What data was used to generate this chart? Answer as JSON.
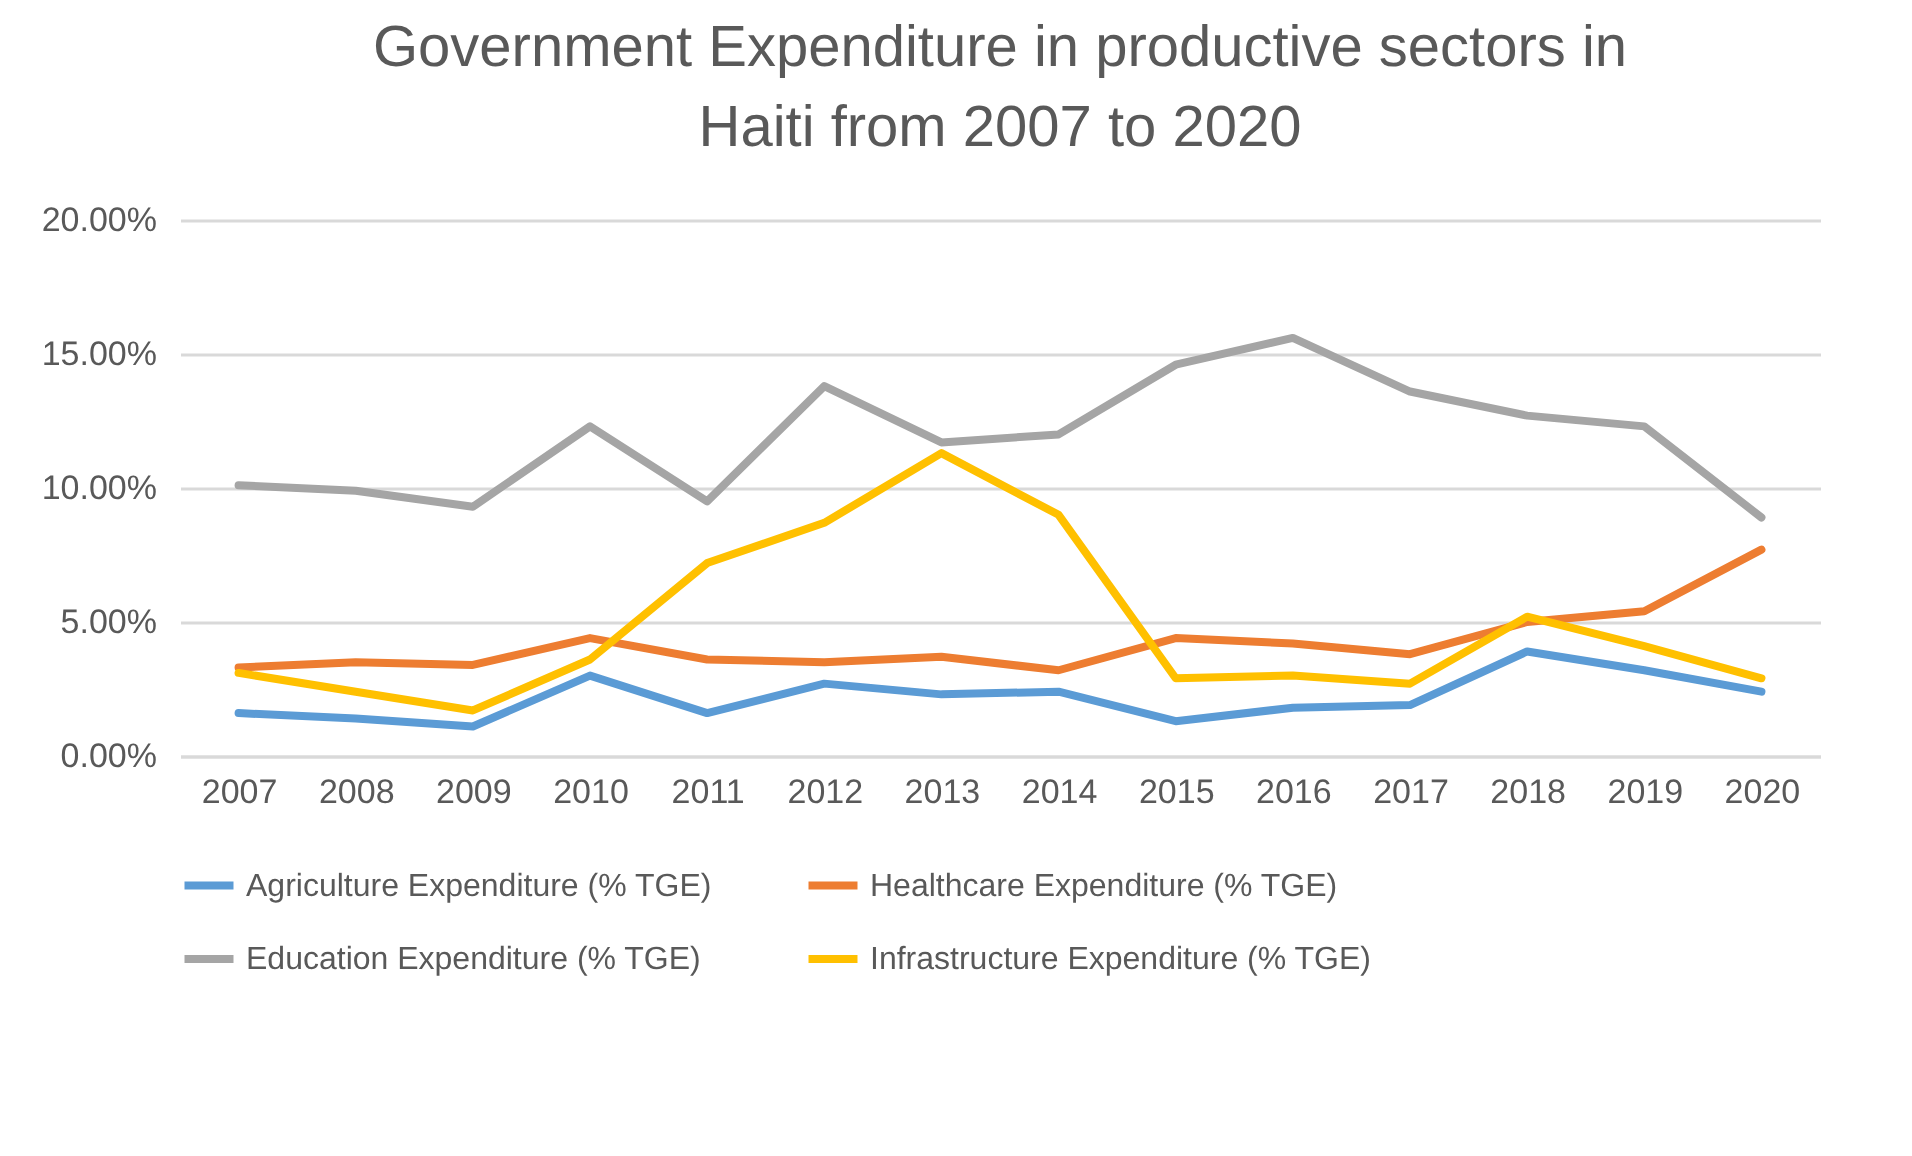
{
  "chart_data": {
    "type": "line",
    "title": "Government Expenditure in productive sectors in Haiti from 2007 to 2020",
    "categories": [
      "2007",
      "2008",
      "2009",
      "2010",
      "2011",
      "2012",
      "2013",
      "2014",
      "2015",
      "2016",
      "2017",
      "2018",
      "2019",
      "2020"
    ],
    "series": [
      {
        "name": "Agriculture Expenditure (% TGE)",
        "color": "#5b9bd5",
        "values": [
          1.6,
          1.4,
          1.1,
          3.0,
          1.6,
          2.7,
          2.3,
          2.4,
          1.3,
          1.8,
          1.9,
          3.9,
          3.2,
          2.4
        ]
      },
      {
        "name": "Healthcare Expenditure (% TGE)",
        "color": "#ed7d31",
        "values": [
          3.3,
          3.5,
          3.4,
          4.4,
          3.6,
          3.5,
          3.7,
          3.2,
          4.4,
          4.2,
          3.8,
          5.0,
          5.4,
          7.7
        ]
      },
      {
        "name": "Education Expenditure (% TGE)",
        "color": "#a5a5a5",
        "values": [
          10.1,
          9.9,
          9.3,
          12.3,
          9.5,
          13.8,
          11.7,
          12.0,
          14.6,
          15.6,
          13.6,
          12.7,
          12.3,
          8.9
        ]
      },
      {
        "name": "Infrastructure Expenditure (% TGE)",
        "color": "#ffc000",
        "values": [
          3.1,
          2.4,
          1.7,
          3.6,
          7.2,
          8.7,
          11.3,
          9.0,
          2.9,
          3.0,
          2.7,
          5.2,
          4.1,
          2.9
        ]
      }
    ],
    "ylim": [
      0,
      20
    ],
    "yticks": [
      {
        "value": 0,
        "label": "0.00%"
      },
      {
        "value": 5,
        "label": "5.00%"
      },
      {
        "value": 10,
        "label": "10.00%"
      },
      {
        "value": 15,
        "label": "15.00%"
      },
      {
        "value": 20,
        "label": "20.00%"
      }
    ],
    "grid": "y",
    "legend": "bottom",
    "marker": "none",
    "line_style": "solid"
  }
}
